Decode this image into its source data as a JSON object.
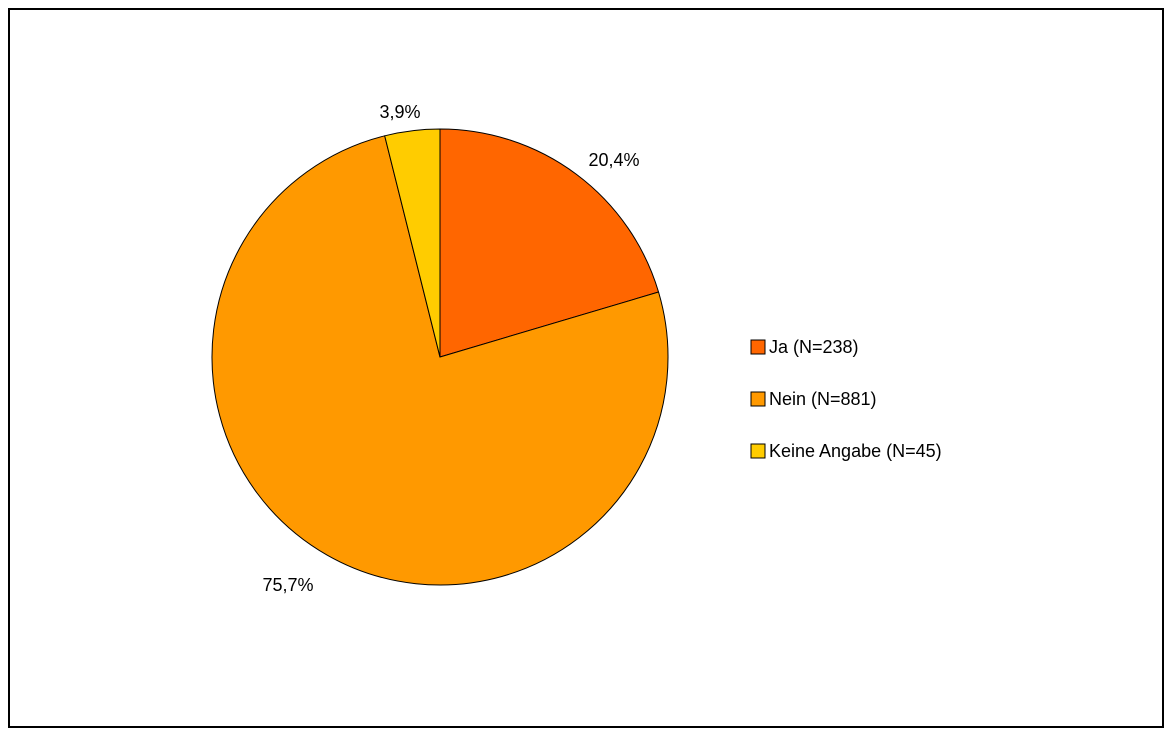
{
  "chart_data": {
    "type": "pie",
    "title": "",
    "categories": [
      "Ja (N=238)",
      "Nein (N=881)",
      "Keine Angabe (N=45)"
    ],
    "values": [
      20.4,
      75.7,
      3.9
    ],
    "labels": [
      "20,4%",
      "75,7%",
      "3,9%"
    ],
    "colors": [
      "#FF6600",
      "#FF9900",
      "#FFCC00"
    ],
    "start_angle_deg": 0,
    "direction": "clockwise",
    "legend_position": "right"
  }
}
